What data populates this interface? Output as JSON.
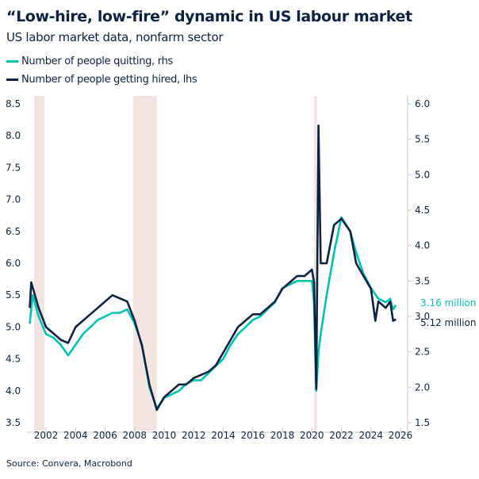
{
  "chart_data": {
    "type": "line",
    "title": "“Low-hire, low-fire” dynamic in US labour market",
    "subtitle": "US labor market data, nonfarm sector",
    "source": "Source: Convera, Macrobond",
    "x_ticks": [
      "2002",
      "2004",
      "2006",
      "2008",
      "2010",
      "2012",
      "2014",
      "2016",
      "2018",
      "2020",
      "2022",
      "2024",
      "2026"
    ],
    "y_left": {
      "range": [
        3.5,
        8.5
      ],
      "ticks": [
        "3.5",
        "4.0",
        "4.5",
        "5.0",
        "5.5",
        "6.0",
        "6.5",
        "7.0",
        "7.5",
        "8.0",
        "8.5"
      ]
    },
    "y_right": {
      "range": [
        1.5,
        6.0
      ],
      "ticks": [
        "1.5",
        "2.0",
        "2.5",
        "3.0",
        "3.5",
        "4.0",
        "4.5",
        "5.0",
        "5.5",
        "6.0"
      ]
    },
    "recessions": [
      [
        2001.2,
        2001.9
      ],
      [
        2007.9,
        2009.5
      ],
      [
        2020.15,
        2020.35
      ]
    ],
    "grid": false,
    "legend_placement": "top-left",
    "series": [
      {
        "name": "Number of people quitting, rhs",
        "axis": "right",
        "color": "#00c4b0",
        "end_label": "3.16 million",
        "x": [
          2000.9,
          2001.1,
          2001.5,
          2002,
          2002.5,
          2003,
          2003.5,
          2004,
          2004.5,
          2005,
          2005.5,
          2006,
          2006.5,
          2007,
          2007.5,
          2008,
          2008.5,
          2009,
          2009.5,
          2010,
          2010.5,
          2011,
          2011.5,
          2012,
          2012.5,
          2013,
          2013.5,
          2014,
          2014.5,
          2015,
          2015.5,
          2016,
          2016.5,
          2017,
          2017.5,
          2018,
          2018.5,
          2019,
          2019.5,
          2020.0,
          2020.15,
          2020.3,
          2020.45,
          2020.6,
          2021,
          2021.5,
          2022,
          2022.3,
          2022.6,
          2023,
          2023.5,
          2024,
          2024.5,
          2025,
          2025.3,
          2025.5,
          2025.7
        ],
        "y": [
          2.9,
          3.3,
          3.0,
          2.75,
          2.7,
          2.6,
          2.45,
          2.6,
          2.75,
          2.85,
          2.95,
          3.0,
          3.05,
          3.05,
          3.1,
          2.9,
          2.6,
          2.0,
          1.7,
          1.85,
          1.9,
          1.95,
          2.05,
          2.1,
          2.1,
          2.2,
          2.3,
          2.4,
          2.6,
          2.75,
          2.85,
          2.95,
          3.0,
          3.1,
          3.2,
          3.4,
          3.45,
          3.5,
          3.5,
          3.5,
          3.2,
          1.95,
          2.5,
          2.75,
          3.3,
          3.9,
          4.4,
          4.3,
          4.2,
          3.9,
          3.6,
          3.4,
          3.25,
          3.2,
          3.25,
          3.1,
          3.16
        ]
      },
      {
        "name": "Number of people getting hired, lhs",
        "axis": "left",
        "color": "#0d2240",
        "end_label": "5.12 million",
        "x": [
          2000.9,
          2001.0,
          2001.5,
          2002,
          2002.5,
          2003,
          2003.5,
          2004,
          2004.5,
          2005,
          2005.5,
          2006,
          2006.5,
          2007,
          2007.5,
          2008,
          2008.5,
          2009,
          2009.5,
          2010,
          2010.5,
          2011,
          2011.5,
          2012,
          2012.5,
          2013,
          2013.5,
          2014,
          2014.5,
          2015,
          2015.5,
          2016,
          2016.5,
          2017,
          2017.5,
          2018,
          2018.5,
          2019,
          2019.5,
          2020.0,
          2020.15,
          2020.3,
          2020.45,
          2020.6,
          2021,
          2021.5,
          2022,
          2022.3,
          2022.6,
          2023,
          2023.5,
          2024,
          2024.3,
          2024.5,
          2025,
          2025.3,
          2025.5,
          2025.7
        ],
        "y": [
          5.3,
          5.7,
          5.3,
          5.0,
          4.9,
          4.8,
          4.75,
          5.0,
          5.1,
          5.2,
          5.3,
          5.4,
          5.5,
          5.45,
          5.4,
          5.1,
          4.7,
          4.1,
          3.7,
          3.9,
          4.0,
          4.1,
          4.1,
          4.2,
          4.25,
          4.3,
          4.4,
          4.6,
          4.8,
          5.0,
          5.1,
          5.2,
          5.2,
          5.3,
          5.4,
          5.6,
          5.7,
          5.8,
          5.8,
          5.9,
          5.7,
          4.03,
          8.16,
          6.0,
          6.0,
          6.6,
          6.7,
          6.6,
          6.5,
          6.0,
          5.8,
          5.6,
          5.1,
          5.4,
          5.3,
          5.4,
          5.1,
          5.12
        ]
      }
    ]
  }
}
